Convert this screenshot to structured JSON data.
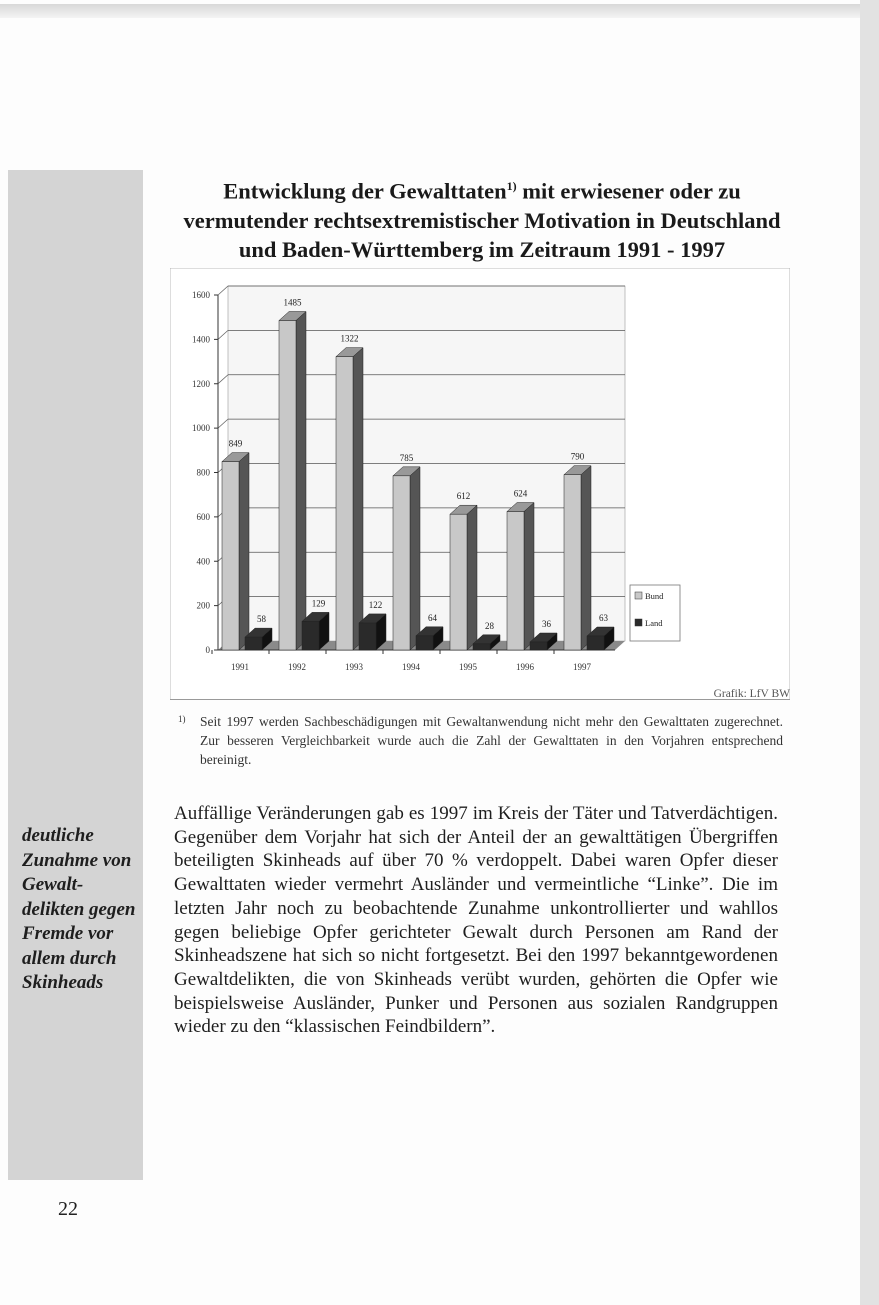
{
  "title": {
    "text": "Entwicklung der Gewalttaten",
    "footnote_ref": "1)",
    "text_cont": " mit erwiesener oder zu vermutender rechtsextremistischer Motivation in Deutschland und Baden-Württemberg im Zeitraum 1991 - 1997"
  },
  "chart_data": {
    "type": "bar",
    "style": "3d-clustered",
    "categories": [
      "1991",
      "1992",
      "1993",
      "1994",
      "1995",
      "1996",
      "1997"
    ],
    "series": [
      {
        "name": "Bund",
        "values": [
          849,
          1485,
          1322,
          785,
          612,
          624,
          790
        ],
        "color": "#c8c8c8"
      },
      {
        "name": "Land",
        "values": [
          58,
          129,
          122,
          64,
          28,
          36,
          63
        ],
        "color": "#2a2a2a"
      }
    ],
    "ylim": [
      0,
      1600
    ],
    "yticks": [
      0,
      200,
      400,
      600,
      800,
      1000,
      1200,
      1400,
      1600
    ],
    "grid": true,
    "legend": "right",
    "source": "Grafik: LfV BW"
  },
  "footnote": {
    "mark": "1)",
    "text": "Seit 1997 werden Sachbeschädigungen mit Gewaltanwendung nicht mehr den Gewalttaten zugerechnet. Zur besseren Vergleichbarkeit wurde auch die Zahl der Gewalttaten in den Vorjahren entsprechend bereinigt."
  },
  "margin_note": "deutliche Zunahme von Gewalt-delikten gegen Fremde vor allem durch Skinheads",
  "body": "Auffällige Veränderungen gab es 1997 im Kreis der Täter und Tatverdächtigen. Gegenüber dem Vorjahr hat sich der Anteil der an gewalttätigen Übergriffen beteiligten Skinheads auf über 70 % verdoppelt. Dabei waren Opfer dieser Gewalttaten wieder vermehrt Ausländer und vermeintliche “Linke”. Die im letzten Jahr noch zu beobachtende Zunahme unkontrollierter und wahllos gegen beliebige Opfer gerichteter Gewalt durch Personen am Rand der Skinheadszene hat sich so nicht fortgesetzt. Bei den 1997 bekanntgewordenen Gewaltdelikten, die von Skinheads verübt wurden, gehörten die Opfer wie beispielsweise Ausländer, Punker und Personen aus sozialen Randgruppen wieder zu den “klassischen Feindbildern”.",
  "page_number": "22"
}
